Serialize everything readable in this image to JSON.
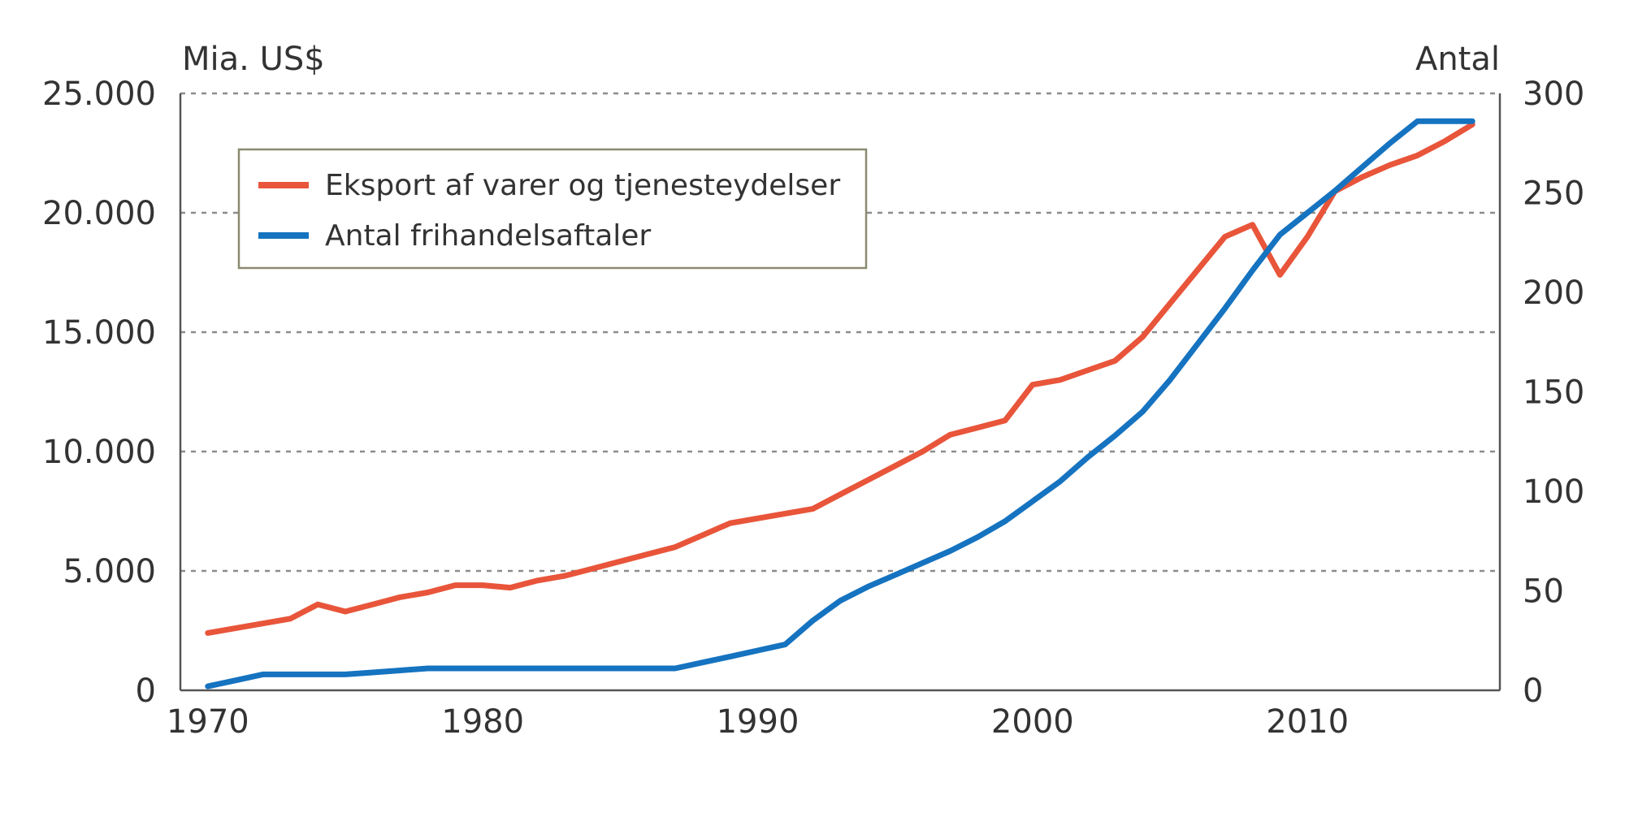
{
  "chart_data": {
    "type": "line",
    "left_axis": {
      "title": "Mia. US$",
      "range": [
        0,
        25000
      ],
      "ticks": [
        0,
        5000,
        10000,
        15000,
        20000,
        25000
      ],
      "tick_labels": [
        "0",
        "5.000",
        "10.000",
        "15.000",
        "20.000",
        "25.000"
      ]
    },
    "right_axis": {
      "title": "Antal",
      "range": [
        0,
        300
      ],
      "ticks": [
        0,
        50,
        100,
        150,
        200,
        250,
        300
      ],
      "tick_labels": [
        "0",
        "50",
        "100",
        "150",
        "200",
        "250",
        "300"
      ]
    },
    "x_axis": {
      "range": [
        1969,
        2017
      ],
      "ticks": [
        1970,
        1980,
        1990,
        2000,
        2010
      ],
      "tick_labels": [
        "1970",
        "1980",
        "1990",
        "2000",
        "2010"
      ]
    },
    "grid": "horizontal dashed",
    "legend": {
      "placement": "top-left"
    },
    "series": [
      {
        "name": "Eksport af varer og tjenesteydelser",
        "axis": "left",
        "color": "#e8553a",
        "x": [
          1970,
          1971,
          1972,
          1973,
          1974,
          1975,
          1976,
          1977,
          1978,
          1979,
          1980,
          1981,
          1982,
          1983,
          1984,
          1985,
          1986,
          1987,
          1988,
          1989,
          1990,
          1991,
          1992,
          1993,
          1994,
          1995,
          1996,
          1997,
          1998,
          1999,
          2000,
          2001,
          2002,
          2003,
          2004,
          2005,
          2006,
          2007,
          2008,
          2009,
          2010,
          2011,
          2012,
          2013,
          2014,
          2015,
          2016
        ],
        "y": [
          2400,
          2600,
          2800,
          3000,
          3600,
          3300,
          3600,
          3900,
          4100,
          4400,
          4400,
          4300,
          4600,
          4800,
          5100,
          5400,
          5700,
          6000,
          6500,
          7000,
          7200,
          7400,
          7600,
          8200,
          8800,
          9400,
          10000,
          10700,
          11000,
          11300,
          12800,
          13000,
          13400,
          13800,
          14800,
          16200,
          17600,
          19000,
          19500,
          17400,
          19000,
          20900,
          21500,
          22000,
          22400,
          23000,
          23700
        ]
      },
      {
        "name": "Antal frihandelsaftaler",
        "axis": "right",
        "color": "#1573c0",
        "x": [
          1970,
          1971,
          1972,
          1973,
          1974,
          1975,
          1976,
          1977,
          1978,
          1979,
          1980,
          1981,
          1982,
          1983,
          1984,
          1985,
          1986,
          1987,
          1988,
          1989,
          1990,
          1991,
          1992,
          1993,
          1994,
          1995,
          1996,
          1997,
          1998,
          1999,
          2000,
          2001,
          2002,
          2003,
          2004,
          2005,
          2006,
          2007,
          2008,
          2009,
          2010,
          2011,
          2012,
          2013,
          2014,
          2015,
          2016
        ],
        "y": [
          2,
          5,
          8,
          8,
          8,
          8,
          9,
          10,
          11,
          11,
          11,
          11,
          11,
          11,
          11,
          11,
          11,
          11,
          14,
          17,
          20,
          23,
          35,
          45,
          52,
          58,
          64,
          70,
          77,
          85,
          95,
          105,
          117,
          128,
          140,
          156,
          174,
          192,
          211,
          229,
          240,
          251,
          263,
          275,
          286,
          286,
          286
        ]
      }
    ]
  }
}
